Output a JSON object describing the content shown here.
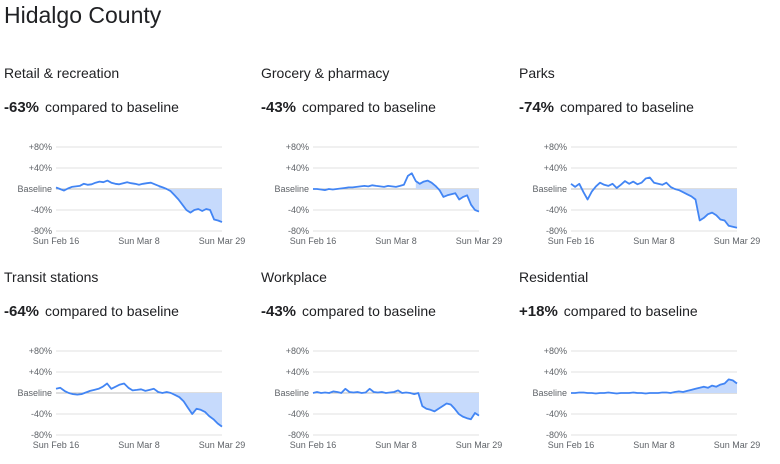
{
  "page": {
    "title": "Hidalgo County"
  },
  "colors": {
    "line": "#4285f4",
    "fill": "#c6dafc",
    "grid": "#e0e0e0"
  },
  "chart_data": [
    {
      "type": "line",
      "title": "Retail & recreation",
      "headline_value": "-63%",
      "headline_text": "compared to baseline",
      "y_ticks": [
        "+80%",
        "+40%",
        "Baseline",
        "-40%",
        "-80%"
      ],
      "x_ticks": [
        "Sun Feb 16",
        "Sun Mar 8",
        "Sun Mar 29"
      ],
      "ylim": [
        -80,
        80
      ],
      "x_range": [
        "2020-02-16",
        "2020-03-29"
      ],
      "series": [
        {
          "values": [
            3,
            0,
            -3,
            1,
            4,
            5,
            6,
            10,
            8,
            9,
            12,
            14,
            13,
            16,
            12,
            10,
            9,
            11,
            13,
            11,
            10,
            8,
            10,
            11,
            12,
            9,
            6,
            3,
            0,
            -4,
            -12,
            -20,
            -30,
            -40,
            -45,
            -40,
            -38,
            -42,
            -38,
            -40,
            -58,
            -60,
            -63
          ]
        }
      ]
    },
    {
      "type": "line",
      "title": "Grocery & pharmacy",
      "headline_value": "-43%",
      "headline_text": "compared to baseline",
      "y_ticks": [
        "+80%",
        "+40%",
        "Baseline",
        "-40%",
        "-80%"
      ],
      "x_ticks": [
        "Sun Feb 16",
        "Sun Mar 8",
        "Sun Mar 29"
      ],
      "ylim": [
        -80,
        80
      ],
      "x_range": [
        "2020-02-16",
        "2020-03-29"
      ],
      "series": [
        {
          "values": [
            0,
            0,
            -1,
            -2,
            0,
            -1,
            0,
            1,
            2,
            3,
            3,
            4,
            5,
            6,
            5,
            7,
            6,
            5,
            4,
            6,
            5,
            4,
            6,
            8,
            25,
            30,
            15,
            10,
            14,
            16,
            12,
            6,
            -2,
            -15,
            -12,
            -10,
            -8,
            -20,
            -15,
            -12,
            -30,
            -40,
            -43
          ]
        }
      ]
    },
    {
      "type": "line",
      "title": "Parks",
      "headline_value": "-74%",
      "headline_text": "compared to baseline",
      "y_ticks": [
        "+80%",
        "+40%",
        "Baseline",
        "-40%",
        "-80%"
      ],
      "x_ticks": [
        "Sun Feb 16",
        "Sun Mar 8",
        "Sun Mar 29"
      ],
      "ylim": [
        -80,
        80
      ],
      "x_range": [
        "2020-02-16",
        "2020-03-29"
      ],
      "series": [
        {
          "values": [
            10,
            4,
            10,
            -6,
            -20,
            -5,
            5,
            12,
            8,
            6,
            10,
            2,
            8,
            15,
            10,
            14,
            9,
            12,
            20,
            22,
            12,
            10,
            8,
            12,
            4,
            0,
            -2,
            -6,
            -10,
            -14,
            -20,
            -60,
            -55,
            -48,
            -45,
            -50,
            -58,
            -60,
            -70,
            -72,
            -74
          ]
        }
      ]
    },
    {
      "type": "line",
      "title": "Transit stations",
      "headline_value": "-64%",
      "headline_text": "compared to baseline",
      "y_ticks": [
        "+80%",
        "+40%",
        "Baseline",
        "-40%",
        "-80%"
      ],
      "x_ticks": [
        "Sun Feb 16",
        "Sun Mar 8",
        "Sun Mar 29"
      ],
      "ylim": [
        -80,
        80
      ],
      "x_range": [
        "2020-02-16",
        "2020-03-29"
      ],
      "series": [
        {
          "values": [
            8,
            10,
            4,
            0,
            -2,
            -3,
            -2,
            1,
            4,
            6,
            8,
            12,
            18,
            8,
            12,
            16,
            18,
            10,
            5,
            6,
            7,
            4,
            6,
            8,
            2,
            0,
            2,
            0,
            -4,
            -8,
            -16,
            -28,
            -40,
            -30,
            -32,
            -36,
            -44,
            -50,
            -58,
            -64
          ]
        }
      ]
    },
    {
      "type": "line",
      "title": "Workplace",
      "headline_value": "-43%",
      "headline_text": "compared to baseline",
      "y_ticks": [
        "+80%",
        "+40%",
        "Baseline",
        "-40%",
        "-80%"
      ],
      "x_ticks": [
        "Sun Feb 16",
        "Sun Mar 8",
        "Sun Mar 29"
      ],
      "ylim": [
        -80,
        80
      ],
      "x_range": [
        "2020-02-16",
        "2020-03-29"
      ],
      "series": [
        {
          "values": [
            0,
            2,
            0,
            1,
            0,
            3,
            2,
            0,
            8,
            2,
            1,
            2,
            0,
            1,
            8,
            2,
            1,
            2,
            0,
            1,
            2,
            5,
            0,
            1,
            0,
            -2,
            0,
            -25,
            -30,
            -32,
            -35,
            -30,
            -25,
            -20,
            -22,
            -30,
            -40,
            -45,
            -48,
            -50,
            -38,
            -43
          ]
        }
      ]
    },
    {
      "type": "line",
      "title": "Residential",
      "headline_value": "+18%",
      "headline_text": "compared to baseline",
      "y_ticks": [
        "+80%",
        "+40%",
        "Baseline",
        "-40%",
        "-80%"
      ],
      "x_ticks": [
        "Sun Feb 16",
        "Sun Mar 8",
        "Sun Mar 29"
      ],
      "ylim": [
        -80,
        80
      ],
      "x_range": [
        "2020-02-16",
        "2020-03-29"
      ],
      "series": [
        {
          "values": [
            0,
            0,
            1,
            1,
            0,
            0,
            -1,
            0,
            0,
            1,
            0,
            -1,
            0,
            0,
            0,
            1,
            0,
            0,
            -1,
            0,
            0,
            0,
            1,
            1,
            0,
            2,
            3,
            2,
            4,
            6,
            8,
            10,
            12,
            10,
            14,
            12,
            16,
            18,
            26,
            24,
            18
          ]
        }
      ]
    }
  ]
}
